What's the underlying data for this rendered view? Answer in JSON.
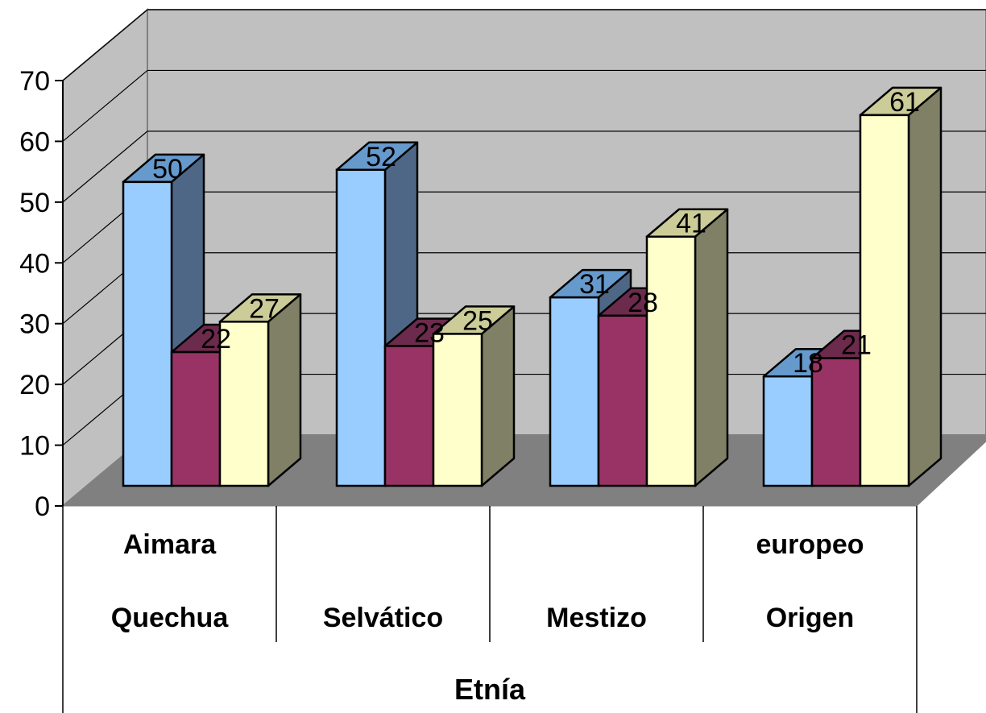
{
  "chart_data": {
    "type": "bar",
    "style": "3d-clustered-column",
    "categories": [
      {
        "line1": "Aimara",
        "line2": "Quechua"
      },
      {
        "line1": "",
        "line2": "Selvático"
      },
      {
        "line1": "",
        "line2": "Mestizo"
      },
      {
        "line1": "europeo",
        "line2": "Origen"
      }
    ],
    "series": [
      {
        "values": [
          50,
          52,
          31,
          18
        ],
        "color": "#99CCFF"
      },
      {
        "values": [
          22,
          23,
          28,
          21
        ],
        "color": "#993366"
      },
      {
        "values": [
          27,
          25,
          41,
          61
        ],
        "color": "#FFFFCC"
      }
    ],
    "xlabel": "Etnía",
    "ylabel": "",
    "ylim": [
      0,
      70
    ],
    "yticks": [
      0,
      10,
      20,
      30,
      40,
      50,
      60,
      70
    ],
    "grid": true,
    "legend": "none",
    "colors": {
      "walls": "#C0C0C0",
      "floor": "#808080"
    }
  }
}
